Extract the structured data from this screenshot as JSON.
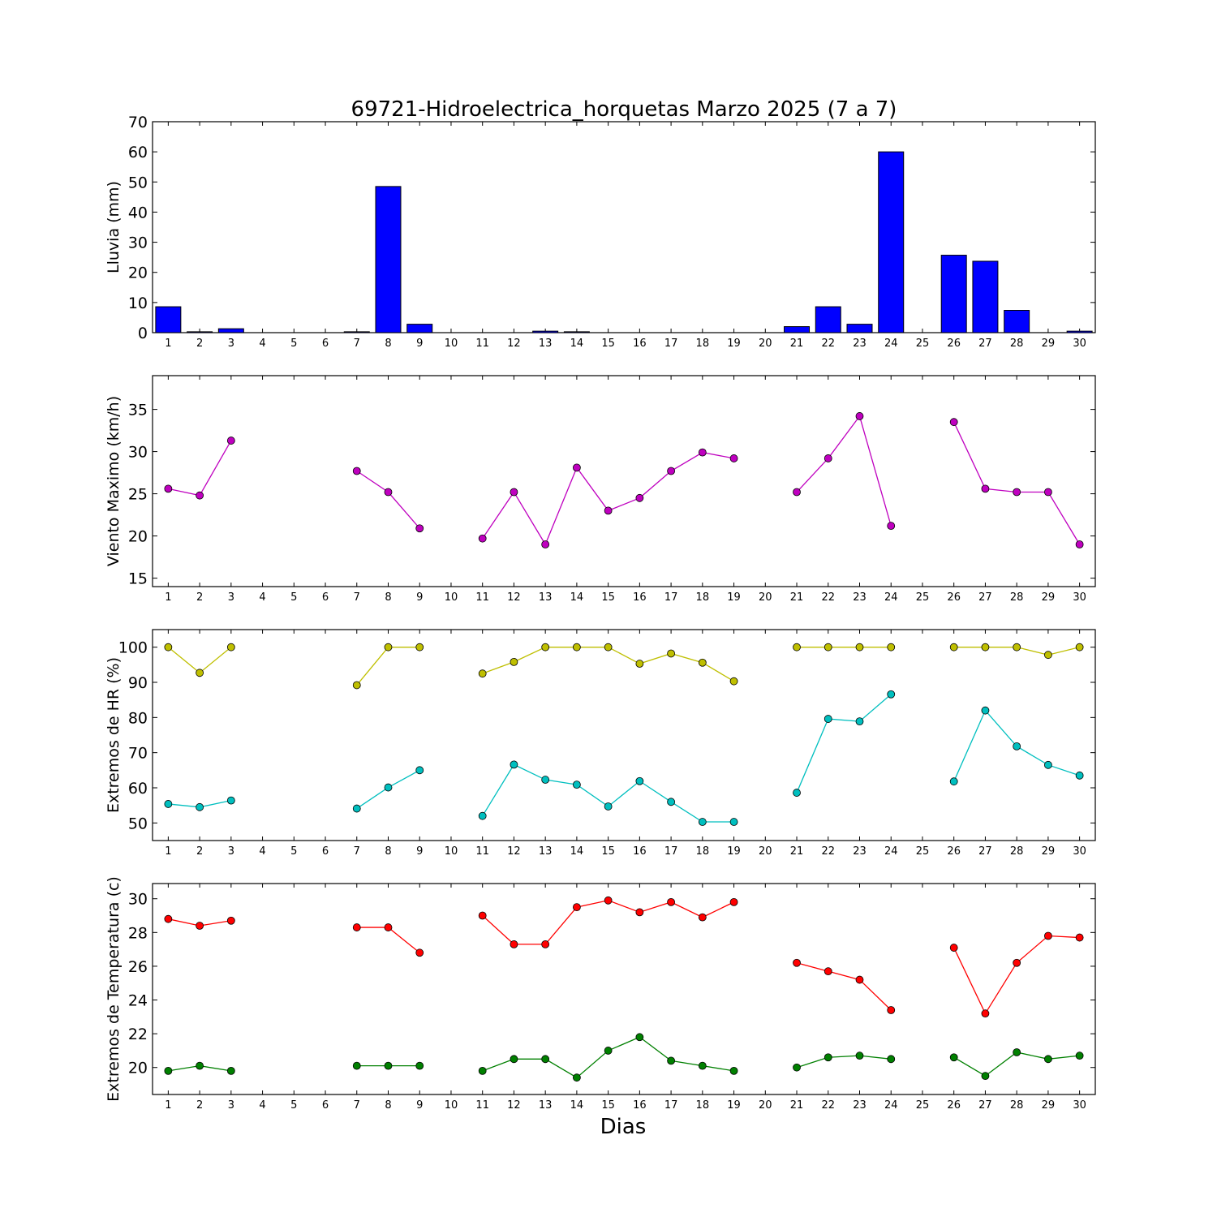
{
  "title": "69721-Hidroelectrica_horquetas Marzo 2025  (7 a 7)",
  "xlabel": "Dias",
  "days": [
    1,
    2,
    3,
    4,
    5,
    6,
    7,
    8,
    9,
    10,
    11,
    12,
    13,
    14,
    15,
    16,
    17,
    18,
    19,
    20,
    21,
    22,
    23,
    24,
    25,
    26,
    27,
    28,
    29,
    30
  ],
  "chart_data": [
    {
      "type": "bar",
      "ylabel": "Lluvia (mm)",
      "ylim": [
        0,
        70
      ],
      "yticks": [
        0,
        10,
        20,
        30,
        40,
        50,
        60,
        70
      ],
      "categories": [
        1,
        2,
        3,
        4,
        5,
        6,
        7,
        8,
        9,
        10,
        11,
        12,
        13,
        14,
        15,
        16,
        17,
        18,
        19,
        20,
        21,
        22,
        23,
        24,
        25,
        26,
        27,
        28,
        29,
        30
      ],
      "values": [
        8.6,
        0.3,
        1.3,
        0,
        0,
        0,
        0.3,
        48.5,
        2.8,
        0,
        0,
        0,
        0.5,
        0.3,
        0,
        0,
        0,
        0,
        0,
        0,
        2.0,
        8.6,
        2.8,
        60.0,
        0,
        25.7,
        23.7,
        7.4,
        0,
        0.5
      ],
      "color": "#0000ff"
    },
    {
      "type": "line",
      "ylabel": "Viento Maximo (km/h)",
      "ylim": [
        14,
        39
      ],
      "yticks": [
        15,
        20,
        25,
        30,
        35
      ],
      "series": [
        {
          "color": "#bf00bf",
          "values": [
            25.6,
            24.8,
            31.3,
            null,
            null,
            null,
            27.7,
            25.2,
            20.9,
            null,
            19.7,
            25.2,
            19.0,
            28.1,
            23.0,
            24.5,
            27.7,
            29.9,
            29.2,
            null,
            25.2,
            29.2,
            34.2,
            21.2,
            null,
            33.5,
            25.6,
            25.2,
            25.2,
            19.0
          ]
        }
      ]
    },
    {
      "type": "line",
      "ylabel": "Extremos de HR (%)",
      "ylim": [
        45,
        105
      ],
      "yticks": [
        50,
        60,
        70,
        80,
        90,
        100
      ],
      "series": [
        {
          "color": "#bfbf00",
          "values": [
            100,
            92.7,
            100,
            null,
            null,
            null,
            89.2,
            100,
            100,
            null,
            92.5,
            95.8,
            100,
            100,
            100,
            95.3,
            98.2,
            95.6,
            90.3,
            null,
            100,
            100,
            100,
            100,
            null,
            100,
            100,
            100,
            97.8,
            100
          ]
        },
        {
          "color": "#00bfbf",
          "values": [
            55.4,
            54.5,
            56.4,
            null,
            null,
            null,
            54.1,
            60.1,
            65.0,
            null,
            52.0,
            66.6,
            62.3,
            60.9,
            54.7,
            61.9,
            56.0,
            50.3,
            50.3,
            null,
            58.6,
            79.6,
            78.9,
            86.6,
            null,
            61.8,
            82.0,
            71.8,
            66.5,
            63.5
          ]
        }
      ]
    },
    {
      "type": "line",
      "ylabel": "Extremos de Temperatura (c)",
      "ylim": [
        18.4,
        30.9
      ],
      "yticks": [
        20,
        22,
        24,
        26,
        28,
        30
      ],
      "series": [
        {
          "color": "#ff0000",
          "values": [
            28.8,
            28.4,
            28.7,
            null,
            null,
            null,
            28.3,
            28.3,
            26.8,
            null,
            29.0,
            27.3,
            27.3,
            29.5,
            29.9,
            29.2,
            29.8,
            28.9,
            29.8,
            null,
            26.2,
            25.7,
            25.2,
            23.4,
            null,
            27.1,
            23.2,
            26.2,
            27.8,
            27.7
          ]
        },
        {
          "color": "#008000",
          "values": [
            19.8,
            20.1,
            19.8,
            null,
            null,
            null,
            20.1,
            20.1,
            20.1,
            null,
            19.8,
            20.5,
            20.5,
            19.4,
            21.0,
            21.8,
            20.4,
            20.1,
            19.8,
            null,
            20.0,
            20.6,
            20.7,
            20.5,
            null,
            20.6,
            19.5,
            20.9,
            20.5,
            20.7
          ]
        }
      ]
    }
  ]
}
